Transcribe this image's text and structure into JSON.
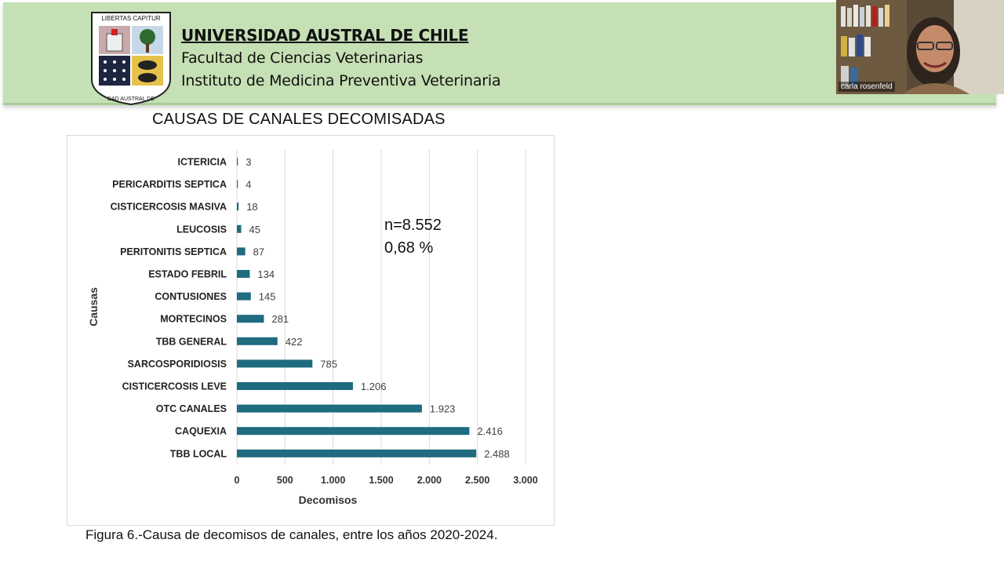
{
  "header": {
    "university": "UNIVERSIDAD AUSTRAL DE CHILE",
    "faculty": "Facultad de Ciencias Veterinarias",
    "institute": "Instituto de Medicina Preventiva Veterinaria",
    "crest_motto": "LIBERTAS CAPITUR",
    "crest_ring": "UNIVERSIDAD AUSTRAL DE CHILE"
  },
  "video": {
    "participant_name": "carla rosenfeld"
  },
  "slide": {
    "title": "CAUSAS DE  CANALES DECOMISADAS",
    "caption": "Figura 6.-Causa de  decomisos de canales, entre los años 2020-2024."
  },
  "chart_data": {
    "type": "bar",
    "orientation": "horizontal",
    "categories": [
      "ICTERICIA",
      "PERICARDITIS SEPTICA",
      "CISTICERCOSIS MASIVA",
      "LEUCOSIS",
      "PERITONITIS SEPTICA",
      "ESTADO FEBRIL",
      "CONTUSIONES",
      "MORTECINOS",
      "TBB GENERAL",
      "SARCOSPORIDIOSIS",
      "CISTICERCOSIS LEVE",
      "OTC CANALES",
      "CAQUEXIA",
      "TBB LOCAL"
    ],
    "values": [
      3,
      4,
      18,
      45,
      87,
      134,
      145,
      281,
      422,
      785,
      1206,
      1923,
      2416,
      2488
    ],
    "value_labels": [
      "3",
      "4",
      "18",
      "45",
      "87",
      "134",
      "145",
      "281",
      "422",
      "785",
      "1.206",
      "1.923",
      "2.416",
      "2.488"
    ],
    "xlabel": "Decomisos",
    "ylabel": "Causas",
    "xlim": [
      0,
      3000
    ],
    "xticks": [
      0,
      500,
      1000,
      1500,
      2000,
      2500,
      3000
    ],
    "xtick_labels": [
      "0",
      "500",
      "1.000",
      "1.500",
      "2.000",
      "2.500",
      "3.000"
    ],
    "grid": "vertical",
    "bar_color": "#1f6b80",
    "annotation": [
      "n=8.552",
      "0,68 %"
    ]
  }
}
